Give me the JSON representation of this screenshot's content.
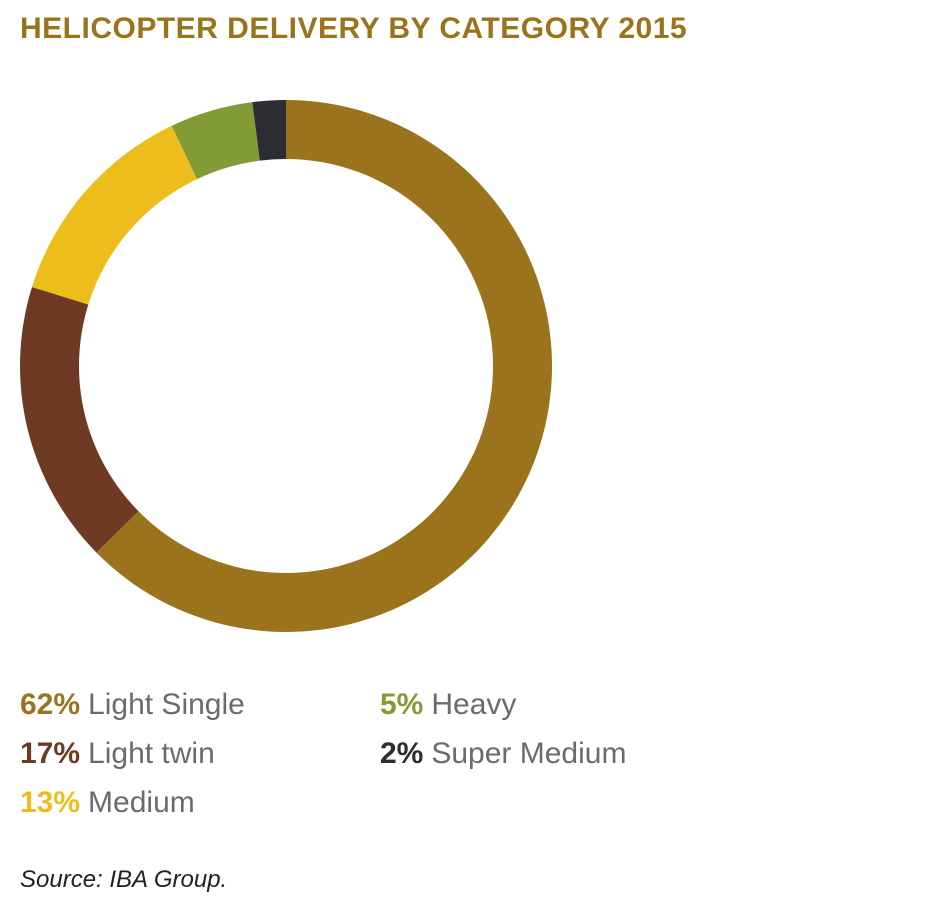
{
  "chart_data": {
    "type": "pie",
    "variant": "donut",
    "title": "HELICOPTER DELIVERY BY CATEGORY 2015",
    "slices": [
      {
        "label": "Light Single",
        "value": 62,
        "pct_label": "62%",
        "color": "#9B731C"
      },
      {
        "label": "Light twin",
        "value": 17,
        "pct_label": "17%",
        "color": "#6E3A24"
      },
      {
        "label": "Medium",
        "value": 13,
        "pct_label": "13%",
        "color": "#EDBD1C"
      },
      {
        "label": "Heavy",
        "value": 5,
        "pct_label": "5%",
        "color": "#829B34"
      },
      {
        "label": "Super Medium",
        "value": 2,
        "pct_label": "2%",
        "color": "#2B2D33"
      }
    ],
    "start": "top",
    "direction": "clockwise",
    "legend_placement": "bottom",
    "source": "Source: IBA Group."
  }
}
